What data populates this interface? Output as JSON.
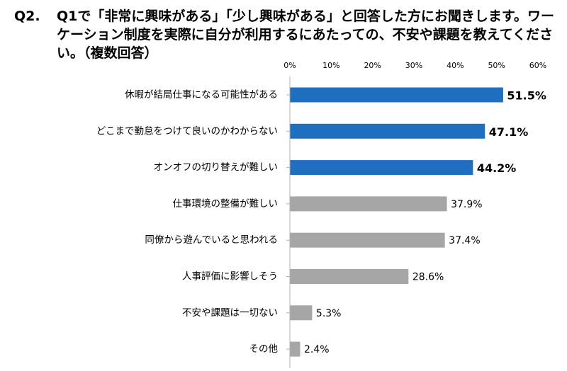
{
  "question": {
    "number": "Q2.",
    "text": "Q1で「非常に興味がある」「少し興味がある」と回答した方にお聞きします。ワーケーション制度を実際に自分が利用するにあたっての、不安や課題を教えてください。（複数回答）"
  },
  "chart_data": {
    "type": "bar",
    "orientation": "horizontal",
    "xlim": [
      0,
      60
    ],
    "x_ticks": [
      "0%",
      "10%",
      "20%",
      "30%",
      "40%",
      "50%",
      "60%"
    ],
    "grid": false,
    "categories": [
      "休暇が結局仕事になる可能性がある",
      "どこまで勤怠をつけて良いのかわからない",
      "オンオフの切り替えが難しい",
      "仕事環境の整備が難しい",
      "同僚から遊んでいると思われる",
      "人事評価に影響しそう",
      "不安や課題は一切ない",
      "その他"
    ],
    "values": [
      51.5,
      47.1,
      44.2,
      37.9,
      37.4,
      28.6,
      5.3,
      2.4
    ],
    "value_labels": [
      "51.5%",
      "47.1%",
      "44.2%",
      "37.9%",
      "37.4%",
      "28.6%",
      "5.3%",
      "2.4%"
    ],
    "highlight_count": 3,
    "colors": {
      "highlight": "#1e6fc0",
      "normal": "#a6a6a6",
      "axis": "#b0b0b0"
    }
  }
}
